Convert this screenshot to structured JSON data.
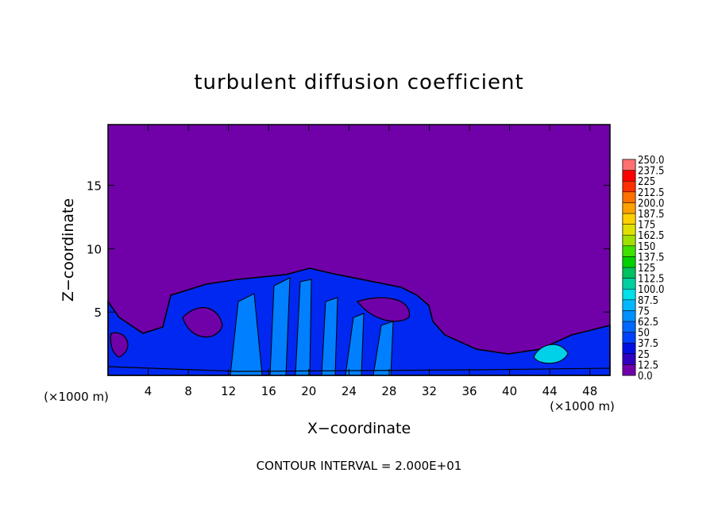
{
  "chart_data": {
    "type": "contour",
    "title": "turbulent diffusion coefficient",
    "x_label": "X−coordinate",
    "y_label": "Z−coordinate",
    "x_unit": "(×1000 m)",
    "x_unit_right": "(×1000 m)",
    "footer": "CONTOUR INTERVAL = 2.000E+01",
    "xlim": [
      0,
      50
    ],
    "xticks": [
      4,
      8,
      12,
      16,
      20,
      24,
      28,
      32,
      36,
      40,
      44,
      48
    ],
    "ylim": [
      0,
      19.8
    ],
    "yticks": [
      5,
      10,
      15
    ],
    "colorbar": {
      "ticks": [
        {
          "value": 0,
          "label": "0.0"
        },
        12.5,
        25,
        37.5,
        50,
        62.5,
        75,
        87.5,
        {
          "value": 100,
          "label": "100.0"
        },
        112.5,
        125,
        137.5,
        150,
        162.5,
        175,
        187.5,
        {
          "value": 200,
          "label": "200.0"
        },
        212.5,
        225,
        237.5,
        {
          "value": 250,
          "label": "250.0"
        }
      ],
      "colors": [
        "#7000a8",
        "#3000c0",
        "#0010e0",
        "#0040ff",
        "#0068ff",
        "#0090ff",
        "#00b8ff",
        "#00e0e8",
        "#00d0a0",
        "#00c060",
        "#00d000",
        "#40e000",
        "#a0e000",
        "#e0e000",
        "#ffd000",
        "#ffa000",
        "#ff7000",
        "#ff3000",
        "#ff0000",
        "#ff7070"
      ]
    }
  }
}
